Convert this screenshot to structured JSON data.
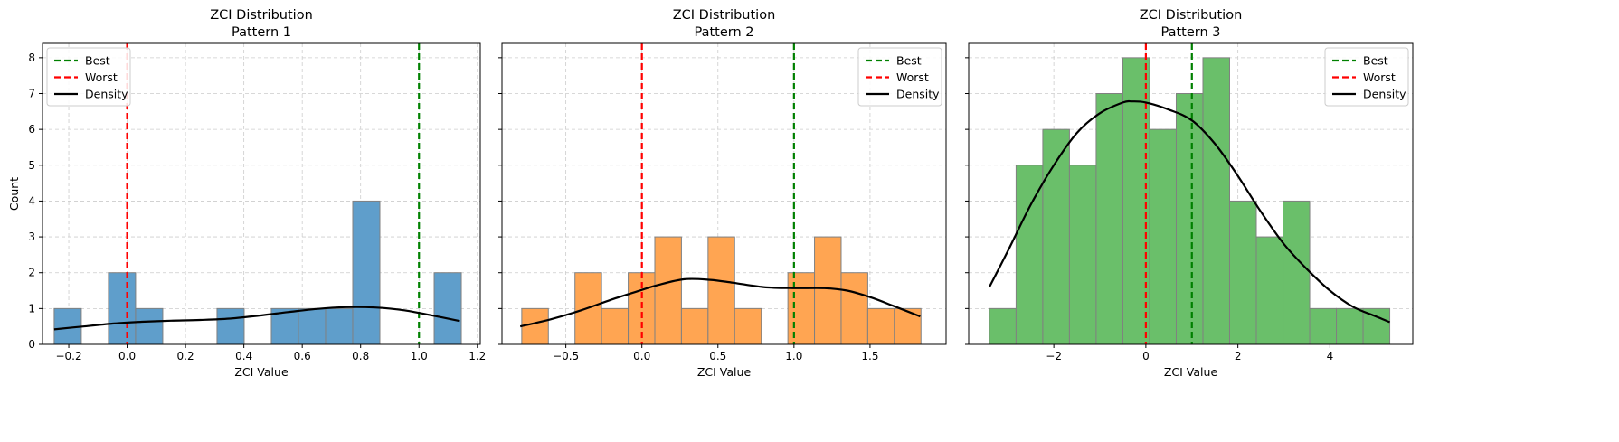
{
  "shared": {
    "ylabel": "Count",
    "xlabel": "ZCI Value",
    "legend": [
      "Best",
      "Worst",
      "Density"
    ]
  },
  "colors": {
    "best": "#008000",
    "worst": "#ff0000",
    "density": "#000000",
    "bar_edge": "#808080",
    "grid": "#cccccc"
  },
  "chart_data": [
    {
      "type": "bar",
      "title": "ZCI Distribution",
      "subtitle": "Pattern 1",
      "xlabel": "ZCI Value",
      "ylabel": "Count",
      "color": "#5f9ecb",
      "xlim": [
        -0.29,
        1.21
      ],
      "ylim": [
        0,
        8.4
      ],
      "xticks": [
        -0.2,
        0.0,
        0.2,
        0.4,
        0.6,
        0.8,
        1.0,
        1.2
      ],
      "xtick_labels": [
        "−0.2",
        "0.0",
        "0.2",
        "0.4",
        "0.6",
        "0.8",
        "1.0",
        "1.2"
      ],
      "yticks": [
        0,
        1,
        2,
        3,
        4,
        5,
        6,
        7,
        8
      ],
      "ytick_labels": [
        "0",
        "1",
        "2",
        "3",
        "4",
        "5",
        "6",
        "7",
        "8"
      ],
      "bin_edges": [
        -0.25,
        -0.157,
        -0.064,
        0.029,
        0.122,
        0.215,
        0.308,
        0.401,
        0.494,
        0.587,
        0.68,
        0.773,
        0.866,
        0.959,
        1.052,
        1.145
      ],
      "counts": [
        1,
        0,
        2,
        1,
        0,
        0,
        1,
        0,
        1,
        1,
        1,
        4,
        0,
        0,
        2
      ],
      "best": 1.0,
      "worst": 0.0,
      "density": [
        [
          -0.25,
          0.42
        ],
        [
          -0.15,
          0.5
        ],
        [
          -0.05,
          0.58
        ],
        [
          0.05,
          0.63
        ],
        [
          0.15,
          0.66
        ],
        [
          0.25,
          0.68
        ],
        [
          0.35,
          0.72
        ],
        [
          0.45,
          0.8
        ],
        [
          0.55,
          0.9
        ],
        [
          0.65,
          0.99
        ],
        [
          0.75,
          1.04
        ],
        [
          0.85,
          1.03
        ],
        [
          0.95,
          0.95
        ],
        [
          1.05,
          0.8
        ],
        [
          1.14,
          0.65
        ]
      ],
      "legend_position": "top-left"
    },
    {
      "type": "bar",
      "title": "ZCI Distribution",
      "subtitle": "Pattern 2",
      "xlabel": "ZCI Value",
      "ylabel": "",
      "color": "#ffa552",
      "xlim": [
        -0.92,
        2.0
      ],
      "ylim": [
        0,
        8.4
      ],
      "xticks": [
        -0.5,
        0.0,
        0.5,
        1.0,
        1.5
      ],
      "xtick_labels": [
        "−0.5",
        "0.0",
        "0.5",
        "1.0",
        "1.5"
      ],
      "yticks": [
        0,
        1,
        2,
        3,
        4,
        5,
        6,
        7,
        8
      ],
      "ytick_labels": [],
      "bin_edges": [
        -0.79,
        -0.615,
        -0.44,
        -0.265,
        -0.09,
        0.085,
        0.26,
        0.435,
        0.61,
        0.785,
        0.96,
        1.135,
        1.31,
        1.485,
        1.66,
        1.835
      ],
      "counts": [
        1,
        0,
        2,
        1,
        2,
        3,
        1,
        3,
        1,
        0,
        2,
        3,
        2,
        1,
        1
      ],
      "best": 1.0,
      "worst": 0.0,
      "density": [
        [
          -0.8,
          0.5
        ],
        [
          -0.6,
          0.7
        ],
        [
          -0.4,
          0.95
        ],
        [
          -0.2,
          1.25
        ],
        [
          0.0,
          1.52
        ],
        [
          0.1,
          1.65
        ],
        [
          0.28,
          1.82
        ],
        [
          0.45,
          1.8
        ],
        [
          0.6,
          1.72
        ],
        [
          0.8,
          1.6
        ],
        [
          1.0,
          1.57
        ],
        [
          1.2,
          1.57
        ],
        [
          1.35,
          1.5
        ],
        [
          1.5,
          1.32
        ],
        [
          1.65,
          1.08
        ],
        [
          1.83,
          0.78
        ]
      ],
      "legend_position": "top-right"
    },
    {
      "type": "bar",
      "title": "ZCI Distribution",
      "subtitle": "Pattern 3",
      "xlabel": "ZCI Value",
      "ylabel": "",
      "color": "#6abf6a",
      "xlim": [
        -3.85,
        5.8
      ],
      "ylim": [
        0,
        8.4
      ],
      "xticks": [
        -2,
        0,
        2,
        4
      ],
      "xtick_labels": [
        "−2",
        "0",
        "2",
        "4"
      ],
      "yticks": [
        0,
        1,
        2,
        3,
        4,
        5,
        6,
        7,
        8
      ],
      "ytick_labels": [],
      "bin_edges": [
        -3.4,
        -2.82,
        -2.24,
        -1.66,
        -1.08,
        -0.5,
        0.08,
        0.66,
        1.24,
        1.82,
        2.4,
        2.98,
        3.56,
        4.14,
        4.72,
        5.3
      ],
      "counts": [
        1,
        5,
        6,
        5,
        7,
        8,
        6,
        7,
        8,
        4,
        3,
        4,
        1,
        1,
        1
      ],
      "best": 1.0,
      "worst": 0.0,
      "density": [
        [
          -3.4,
          1.6
        ],
        [
          -3.0,
          2.6
        ],
        [
          -2.5,
          3.9
        ],
        [
          -2.0,
          5.0
        ],
        [
          -1.5,
          5.9
        ],
        [
          -1.0,
          6.45
        ],
        [
          -0.5,
          6.75
        ],
        [
          -0.3,
          6.78
        ],
        [
          0.0,
          6.75
        ],
        [
          0.5,
          6.55
        ],
        [
          1.0,
          6.25
        ],
        [
          1.5,
          5.6
        ],
        [
          2.0,
          4.7
        ],
        [
          2.5,
          3.7
        ],
        [
          3.0,
          2.8
        ],
        [
          3.5,
          2.1
        ],
        [
          4.0,
          1.5
        ],
        [
          4.5,
          1.05
        ],
        [
          5.0,
          0.78
        ],
        [
          5.3,
          0.62
        ]
      ],
      "legend_position": "top-right"
    }
  ]
}
